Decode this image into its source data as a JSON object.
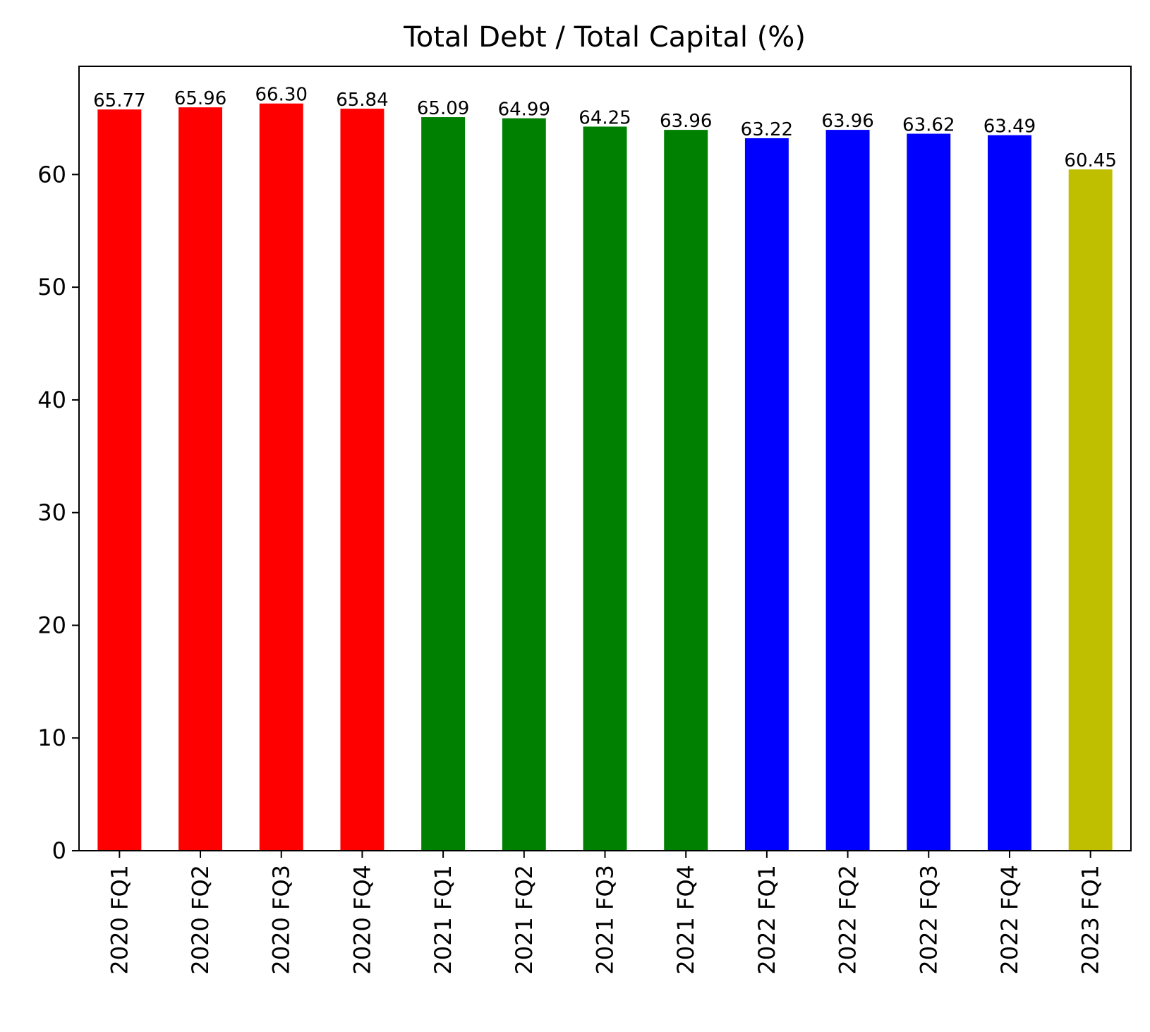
{
  "chart_data": {
    "type": "bar",
    "title": "Total Debt / Total Capital (%)",
    "xlabel": "",
    "ylabel": "",
    "categories": [
      "2020 FQ1",
      "2020 FQ2",
      "2020 FQ3",
      "2020 FQ4",
      "2021 FQ1",
      "2021 FQ2",
      "2021 FQ3",
      "2021 FQ4",
      "2022 FQ1",
      "2022 FQ2",
      "2022 FQ3",
      "2022 FQ4",
      "2023 FQ1"
    ],
    "values": [
      65.77,
      65.96,
      66.3,
      65.84,
      65.09,
      64.99,
      64.25,
      63.96,
      63.22,
      63.96,
      63.62,
      63.49,
      60.45
    ],
    "value_labels": [
      "65.77",
      "65.96",
      "66.30",
      "65.84",
      "65.09",
      "64.99",
      "64.25",
      "63.96",
      "63.22",
      "63.96",
      "63.62",
      "63.49",
      "60.45"
    ],
    "colors": [
      "#ff0000",
      "#ff0000",
      "#ff0000",
      "#ff0000",
      "#008000",
      "#008000",
      "#008000",
      "#008000",
      "#0000ff",
      "#0000ff",
      "#0000ff",
      "#0000ff",
      "#bfbf00"
    ],
    "yticks": [
      0,
      10,
      20,
      30,
      40,
      50,
      60
    ],
    "ylim": [
      0,
      69.6
    ],
    "grid": false,
    "legend": "none"
  }
}
